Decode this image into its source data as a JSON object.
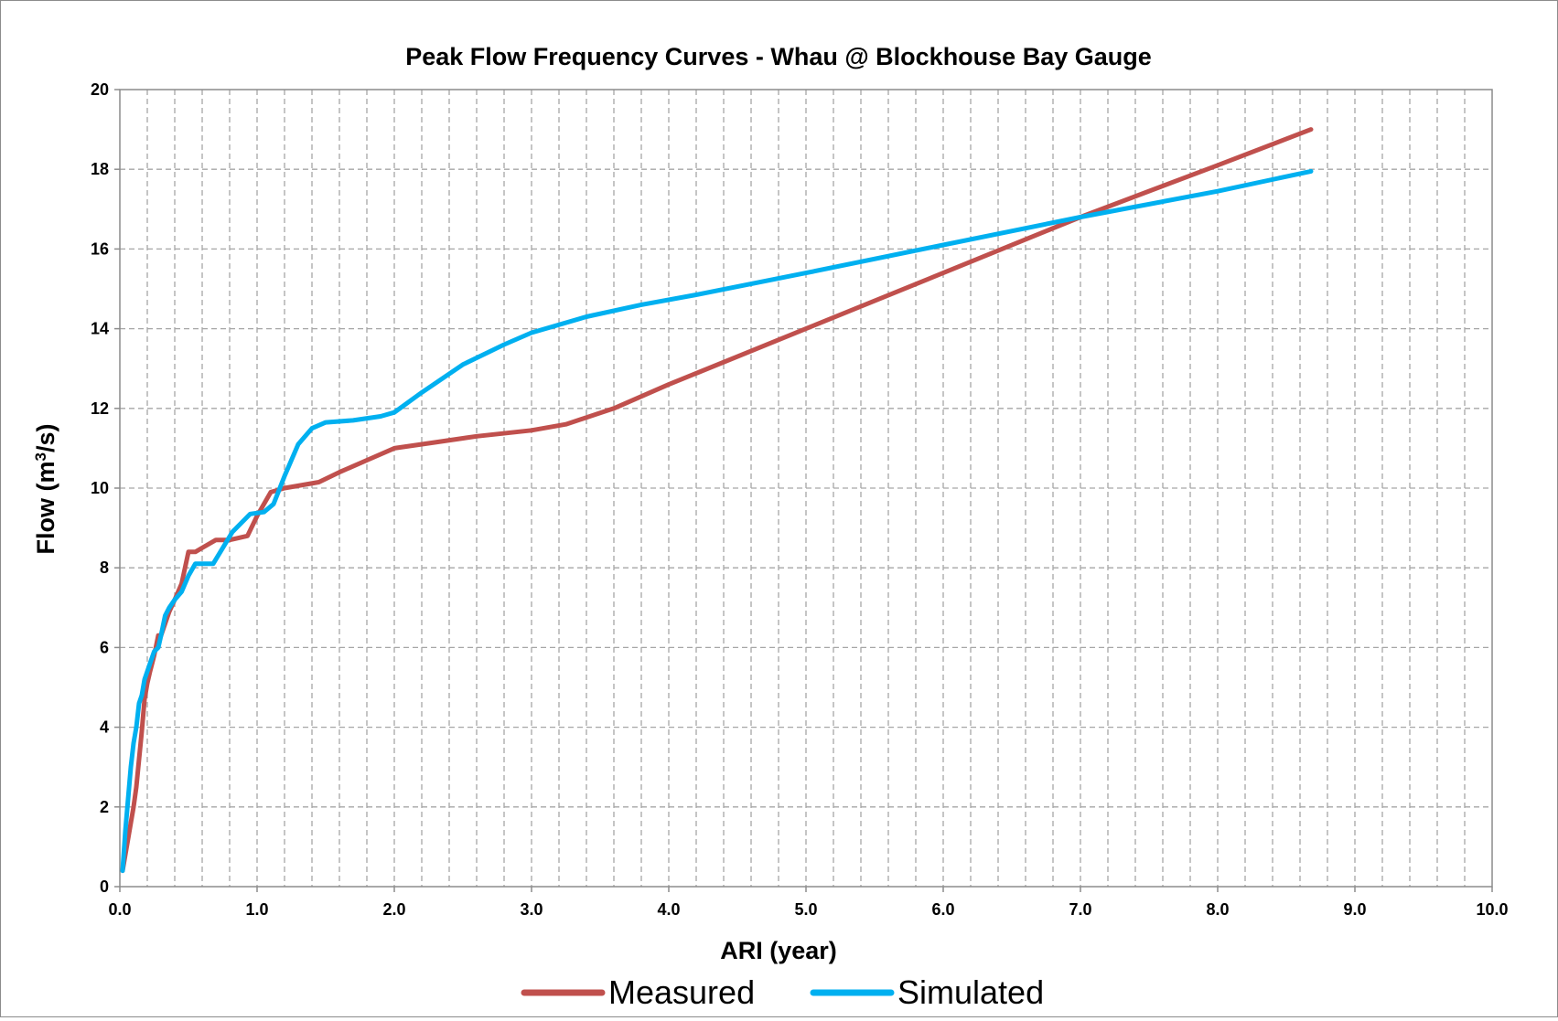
{
  "chart_data": {
    "type": "line",
    "title": "Peak Flow Frequency Curves - Whau @ Blockhouse Bay Gauge",
    "xlabel": "ARI (year)",
    "ylabel_main": "Flow (m",
    "ylabel_sup": "3",
    "ylabel_tail": "/s)",
    "xlim": [
      0,
      10
    ],
    "ylim": [
      0,
      20
    ],
    "x_ticks": [
      "0.0",
      "1.0",
      "2.0",
      "3.0",
      "4.0",
      "5.0",
      "6.0",
      "7.0",
      "8.0",
      "9.0",
      "10.0"
    ],
    "y_ticks": [
      "0",
      "2",
      "4",
      "6",
      "8",
      "10",
      "12",
      "14",
      "16",
      "18",
      "20"
    ],
    "grid": true,
    "legend_position": "bottom",
    "series": [
      {
        "name": "Measured",
        "color": "#c0504d",
        "x": [
          0.02,
          0.04,
          0.06,
          0.08,
          0.1,
          0.12,
          0.14,
          0.16,
          0.18,
          0.2,
          0.22,
          0.25,
          0.28,
          0.3,
          0.33,
          0.36,
          0.4,
          0.45,
          0.5,
          0.55,
          0.6,
          0.7,
          0.8,
          0.93,
          1.0,
          1.1,
          1.2,
          1.45,
          1.6,
          1.8,
          2.0,
          2.3,
          2.6,
          3.0,
          3.25,
          3.6,
          4.0,
          5.0,
          6.0,
          7.0,
          8.0,
          8.68
        ],
        "y": [
          0.4,
          0.8,
          1.2,
          1.6,
          2.0,
          2.5,
          3.2,
          3.9,
          4.7,
          5.1,
          5.4,
          5.8,
          6.3,
          6.3,
          6.6,
          6.9,
          7.2,
          7.6,
          8.4,
          8.4,
          8.5,
          8.7,
          8.7,
          8.8,
          9.3,
          9.9,
          10.0,
          10.15,
          10.4,
          10.7,
          11.0,
          11.15,
          11.3,
          11.45,
          11.6,
          12.0,
          12.6,
          14.0,
          15.4,
          16.8,
          18.1,
          19.0
        ]
      },
      {
        "name": "Simulated",
        "color": "#00b0f0",
        "x": [
          0.02,
          0.04,
          0.06,
          0.08,
          0.1,
          0.12,
          0.14,
          0.16,
          0.18,
          0.2,
          0.22,
          0.25,
          0.28,
          0.3,
          0.33,
          0.36,
          0.4,
          0.45,
          0.5,
          0.55,
          0.6,
          0.68,
          0.75,
          0.82,
          0.95,
          1.05,
          1.12,
          1.2,
          1.3,
          1.4,
          1.5,
          1.7,
          1.9,
          2.0,
          2.2,
          2.5,
          2.8,
          3.0,
          3.4,
          3.8,
          4.2,
          5.0,
          6.0,
          7.0,
          8.0,
          8.68
        ],
        "y": [
          0.4,
          1.4,
          2.2,
          3.0,
          3.6,
          4.0,
          4.6,
          4.8,
          5.2,
          5.4,
          5.6,
          5.9,
          6.0,
          6.3,
          6.8,
          7.0,
          7.2,
          7.4,
          7.8,
          8.1,
          8.1,
          8.1,
          8.5,
          8.9,
          9.35,
          9.4,
          9.6,
          10.3,
          11.1,
          11.5,
          11.65,
          11.7,
          11.8,
          11.9,
          12.4,
          13.1,
          13.6,
          13.9,
          14.3,
          14.6,
          14.85,
          15.4,
          16.1,
          16.8,
          17.45,
          17.95
        ]
      }
    ]
  }
}
